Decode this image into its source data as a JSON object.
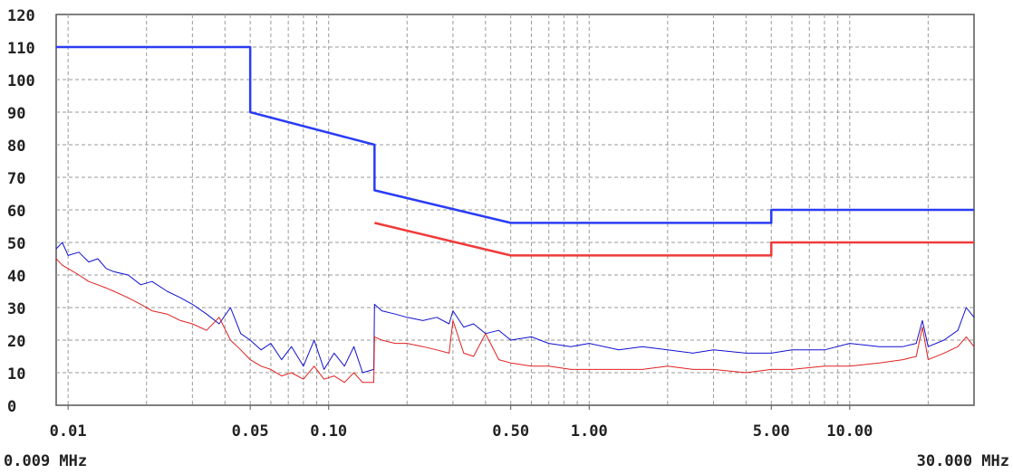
{
  "chart_data": {
    "type": "line",
    "log_x": true,
    "grid": true,
    "xlim": [
      0.009,
      30
    ],
    "ylim": [
      0,
      120
    ],
    "yticks": [
      0,
      10,
      20,
      30,
      40,
      50,
      60,
      70,
      80,
      90,
      100,
      110,
      120
    ],
    "xticks": [
      0.01,
      0.05,
      {
        "value": 0.1,
        "label": "0.10"
      },
      {
        "value": 0.5,
        "label": "0.50"
      },
      {
        "value": 1,
        "label": "1.00"
      },
      {
        "value": 5,
        "label": "5.00"
      },
      {
        "value": 10,
        "label": "10.00"
      }
    ],
    "x_grid": [
      0.01,
      0.02,
      0.03,
      0.04,
      0.05,
      0.06,
      0.07,
      0.08,
      0.09,
      0.1,
      0.2,
      0.3,
      0.4,
      0.5,
      0.6,
      0.7,
      0.8,
      0.9,
      1,
      2,
      3,
      4,
      5,
      6,
      7,
      8,
      9,
      10,
      20
    ],
    "x_start_label": "0.009 MHz",
    "x_end_label": "30.000 MHz",
    "series": [
      {
        "color": "#2a3cf5",
        "width": 2.5,
        "x": [
          0.009,
          0.05,
          0.05,
          0.15,
          0.15,
          0.5,
          5,
          5,
          30
        ],
        "values": [
          110,
          110,
          90,
          80,
          66,
          56,
          56,
          60,
          60
        ]
      },
      {
        "color": "#f03a3a",
        "width": 2.5,
        "x": [
          0.15,
          0.5,
          5,
          5,
          30
        ],
        "values": [
          56,
          46,
          46,
          50,
          50
        ]
      },
      {
        "color": "#1010d0",
        "width": 1,
        "x": [
          0.009,
          0.0095,
          0.01,
          0.011,
          0.012,
          0.013,
          0.014,
          0.015,
          0.017,
          0.019,
          0.021,
          0.024,
          0.027,
          0.03,
          0.034,
          0.038,
          0.042,
          0.046,
          0.05,
          0.055,
          0.06,
          0.066,
          0.072,
          0.08,
          0.088,
          0.096,
          0.105,
          0.115,
          0.125,
          0.135,
          0.149,
          0.15,
          0.16,
          0.18,
          0.2,
          0.23,
          0.26,
          0.29,
          0.3,
          0.33,
          0.36,
          0.4,
          0.45,
          0.5,
          0.6,
          0.7,
          0.85,
          1,
          1.3,
          1.6,
          2,
          2.5,
          3,
          4,
          5,
          6,
          8,
          10,
          13,
          16,
          18,
          19,
          20,
          23,
          26,
          28,
          30
        ],
        "values": [
          48,
          50,
          46,
          47,
          44,
          45,
          42,
          41,
          40,
          37,
          38,
          35,
          33,
          31,
          28,
          25,
          30,
          22,
          20,
          17,
          19,
          14,
          18,
          12,
          20,
          11,
          16,
          12,
          18,
          10,
          11,
          31,
          29,
          28,
          27,
          26,
          27,
          25,
          29,
          24,
          25,
          22,
          23,
          20,
          21,
          19,
          18,
          19,
          17,
          18,
          17,
          16,
          17,
          16,
          16,
          17,
          17,
          19,
          18,
          18,
          19,
          26,
          18,
          20,
          23,
          30,
          27
        ]
      },
      {
        "color": "#e02020",
        "width": 1,
        "x": [
          0.009,
          0.0095,
          0.01,
          0.011,
          0.012,
          0.013,
          0.014,
          0.015,
          0.017,
          0.019,
          0.021,
          0.024,
          0.027,
          0.03,
          0.034,
          0.038,
          0.042,
          0.046,
          0.05,
          0.055,
          0.06,
          0.066,
          0.072,
          0.08,
          0.088,
          0.096,
          0.105,
          0.115,
          0.125,
          0.135,
          0.149,
          0.15,
          0.16,
          0.18,
          0.2,
          0.23,
          0.26,
          0.29,
          0.3,
          0.33,
          0.36,
          0.4,
          0.45,
          0.5,
          0.6,
          0.7,
          0.85,
          1,
          1.3,
          1.6,
          2,
          2.5,
          3,
          4,
          5,
          6,
          8,
          10,
          13,
          16,
          18,
          19,
          20,
          23,
          26,
          28,
          30
        ],
        "values": [
          45,
          43,
          42,
          40,
          38,
          37,
          36,
          35,
          33,
          31,
          29,
          28,
          26,
          25,
          23,
          27,
          20,
          17,
          14,
          12,
          11,
          9,
          10,
          8,
          12,
          8,
          9,
          7,
          10,
          7,
          7,
          21,
          20,
          19,
          19,
          18,
          17,
          16,
          26,
          16,
          15,
          22,
          14,
          13,
          12,
          12,
          11,
          11,
          11,
          11,
          12,
          11,
          11,
          10,
          11,
          11,
          12,
          12,
          13,
          14,
          15,
          24,
          14,
          16,
          18,
          21,
          18
        ]
      }
    ]
  }
}
